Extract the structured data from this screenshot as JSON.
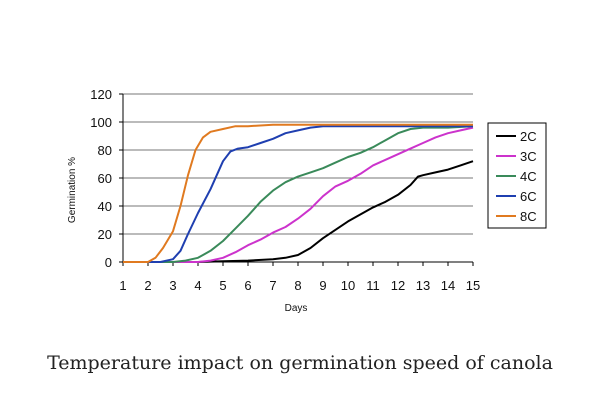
{
  "caption": "Temperature impact on germination speed of canola",
  "chart_data": {
    "type": "line",
    "title": "",
    "xlabel": "Days",
    "ylabel": "Germination %",
    "xlim": [
      1,
      15
    ],
    "ylim": [
      0,
      120
    ],
    "x_ticks": [
      1,
      2,
      3,
      4,
      5,
      6,
      7,
      8,
      9,
      10,
      11,
      12,
      13,
      14,
      15
    ],
    "y_ticks": [
      0,
      20,
      40,
      60,
      80,
      100,
      120
    ],
    "grid": "horizontal",
    "legend_position": "right",
    "series": [
      {
        "name": "2C",
        "color": "#000000",
        "points": [
          [
            1,
            0
          ],
          [
            2,
            0
          ],
          [
            3,
            0
          ],
          [
            4,
            0
          ],
          [
            5,
            0.5
          ],
          [
            6,
            1
          ],
          [
            7,
            2
          ],
          [
            7.5,
            3
          ],
          [
            8,
            5
          ],
          [
            8.5,
            10
          ],
          [
            9,
            17
          ],
          [
            9.5,
            23
          ],
          [
            10,
            29
          ],
          [
            10.5,
            34
          ],
          [
            11,
            39
          ],
          [
            11.5,
            43
          ],
          [
            12,
            48
          ],
          [
            12.5,
            55
          ],
          [
            12.8,
            61
          ],
          [
            13,
            62
          ],
          [
            13.5,
            64
          ],
          [
            14,
            66
          ],
          [
            14.5,
            69
          ],
          [
            15,
            72
          ]
        ]
      },
      {
        "name": "3C",
        "color": "#cc33cc",
        "points": [
          [
            1,
            0
          ],
          [
            4,
            0
          ],
          [
            4.5,
            1
          ],
          [
            5,
            3
          ],
          [
            5.5,
            7
          ],
          [
            6,
            12
          ],
          [
            6.5,
            16
          ],
          [
            7,
            21
          ],
          [
            7.5,
            25
          ],
          [
            8,
            31
          ],
          [
            8.5,
            38
          ],
          [
            9,
            47
          ],
          [
            9.5,
            54
          ],
          [
            10,
            58
          ],
          [
            10.5,
            63
          ],
          [
            11,
            69
          ],
          [
            11.5,
            73
          ],
          [
            12,
            77
          ],
          [
            12.5,
            81
          ],
          [
            13,
            85
          ],
          [
            13.5,
            89
          ],
          [
            14,
            92
          ],
          [
            14.5,
            94
          ],
          [
            15,
            96
          ]
        ]
      },
      {
        "name": "4C",
        "color": "#3a8a5a",
        "points": [
          [
            1,
            0
          ],
          [
            3,
            0
          ],
          [
            3.5,
            1
          ],
          [
            4,
            3
          ],
          [
            4.5,
            8
          ],
          [
            5,
            15
          ],
          [
            5.5,
            24
          ],
          [
            6,
            33
          ],
          [
            6.5,
            43
          ],
          [
            7,
            51
          ],
          [
            7.5,
            57
          ],
          [
            8,
            61
          ],
          [
            8.5,
            64
          ],
          [
            9,
            67
          ],
          [
            9.5,
            71
          ],
          [
            10,
            75
          ],
          [
            10.5,
            78
          ],
          [
            11,
            82
          ],
          [
            11.5,
            87
          ],
          [
            12,
            92
          ],
          [
            12.5,
            95
          ],
          [
            13,
            96
          ],
          [
            14,
            96
          ],
          [
            15,
            97
          ]
        ]
      },
      {
        "name": "6C",
        "color": "#1f3fb0",
        "points": [
          [
            1,
            0
          ],
          [
            2.5,
            0
          ],
          [
            3,
            2
          ],
          [
            3.3,
            8
          ],
          [
            3.6,
            20
          ],
          [
            4,
            35
          ],
          [
            4.5,
            52
          ],
          [
            5,
            72
          ],
          [
            5.3,
            79
          ],
          [
            5.6,
            81
          ],
          [
            6,
            82
          ],
          [
            6.5,
            85
          ],
          [
            7,
            88
          ],
          [
            7.5,
            92
          ],
          [
            8,
            94
          ],
          [
            8.5,
            96
          ],
          [
            9,
            97
          ],
          [
            10,
            97
          ],
          [
            11,
            97
          ],
          [
            12,
            97
          ],
          [
            13,
            97
          ],
          [
            14,
            97
          ],
          [
            15,
            97
          ]
        ]
      },
      {
        "name": "8C",
        "color": "#e07a20",
        "points": [
          [
            1,
            0
          ],
          [
            2,
            0
          ],
          [
            2.3,
            3
          ],
          [
            2.6,
            10
          ],
          [
            3,
            22
          ],
          [
            3.3,
            40
          ],
          [
            3.6,
            62
          ],
          [
            3.9,
            80
          ],
          [
            4.2,
            89
          ],
          [
            4.5,
            93
          ],
          [
            5,
            95
          ],
          [
            5.5,
            97
          ],
          [
            6,
            97
          ],
          [
            7,
            98
          ],
          [
            8,
            98
          ],
          [
            9,
            98
          ],
          [
            10,
            98
          ],
          [
            11,
            98
          ],
          [
            12,
            98
          ],
          [
            13,
            98
          ],
          [
            14,
            98
          ],
          [
            15,
            98
          ]
        ]
      }
    ]
  }
}
